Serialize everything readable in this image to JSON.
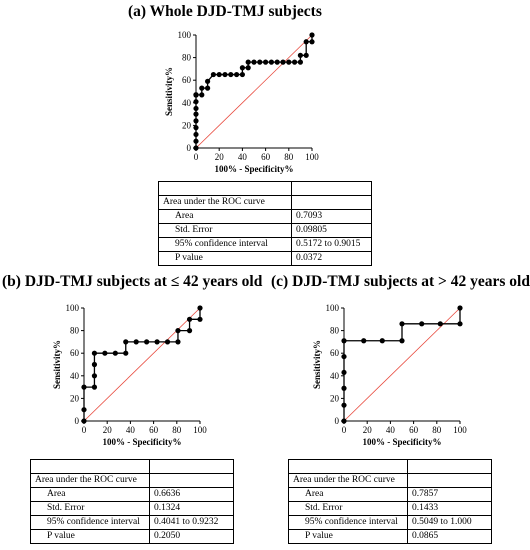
{
  "panels": [
    {
      "id": "a",
      "title": "(a) Whole DJD-TMJ subjects",
      "chart_data": {
        "type": "line",
        "title": "(a) Whole DJD-TMJ subjects",
        "xlabel": "100% - Specificity%",
        "ylabel": "Sensitivity%",
        "xlim": [
          0,
          100
        ],
        "ylim": [
          0,
          100
        ],
        "xticks": [
          0,
          20,
          40,
          60,
          80,
          100
        ],
        "yticks": [
          0,
          20,
          40,
          60,
          80,
          100
        ],
        "grid": false,
        "series": [
          {
            "x": [
              0,
              0,
              0,
              0,
              0,
              0,
              0,
              0,
              0,
              0,
              0,
              0,
              5,
              5,
              10,
              10,
              15,
              20,
              25,
              30,
              35,
              40,
              40,
              45,
              45,
              50,
              55,
              60,
              65,
              70,
              75,
              80,
              85,
              90,
              90,
              95,
              95,
              100,
              100
            ],
            "y": [
              0,
              6,
              12,
              18,
              24,
              30,
              35,
              41,
              47,
              47,
              47,
              47,
              47,
              53,
              53,
              59,
              65,
              65,
              65,
              65,
              65,
              65,
              71,
              71,
              76,
              76,
              76,
              76,
              76,
              76,
              76,
              76,
              76,
              76,
              82,
              82,
              94,
              94,
              100
            ]
          },
          {
            "x": [
              0,
              100
            ],
            "y": [
              0,
              100
            ]
          }
        ]
      },
      "table": {
        "header": [
          "",
          ""
        ],
        "section_label": "Area under the ROC curve",
        "rows": [
          {
            "label": "Area",
            "value": "0.7093"
          },
          {
            "label": "Std. Error",
            "value": "0.09805"
          },
          {
            "label": "95% confidence interval",
            "value": "0.5172 to 0.9015"
          },
          {
            "label": "P value",
            "value": "0.0372"
          }
        ]
      }
    },
    {
      "id": "b",
      "title": "(b) DJD-TMJ subjects at ≤ 42 years old",
      "chart_data": {
        "type": "line",
        "title": "(b) DJD-TMJ subjects at ≤ 42 years old",
        "xlabel": "100% - Specificity%",
        "ylabel": "Sensitivity%",
        "xlim": [
          0,
          100
        ],
        "ylim": [
          0,
          100
        ],
        "xticks": [
          0,
          20,
          40,
          60,
          80,
          100
        ],
        "yticks": [
          0,
          20,
          40,
          60,
          80,
          100
        ],
        "grid": false,
        "series": [
          {
            "x": [
              0,
              0,
              0,
              9,
              9,
              9,
              9,
              18,
              27,
              36,
              36,
              45,
              54,
              63,
              72,
              81,
              81,
              91,
              91,
              100,
              100
            ],
            "y": [
              0,
              10,
              30,
              30,
              40,
              50,
              60,
              60,
              60,
              60,
              70,
              70,
              70,
              70,
              70,
              70,
              80,
              80,
              90,
              90,
              100
            ]
          },
          {
            "x": [
              0,
              100
            ],
            "y": [
              0,
              100
            ]
          }
        ]
      },
      "table": {
        "header": [
          "",
          ""
        ],
        "section_label": "Area under the ROC curve",
        "rows": [
          {
            "label": "Area",
            "value": "0.6636"
          },
          {
            "label": "Std. Error",
            "value": "0.1324"
          },
          {
            "label": "95% confidence interval",
            "value": "0.4041 to 0.9232"
          },
          {
            "label": "P value",
            "value": "0.2050"
          }
        ]
      }
    },
    {
      "id": "c",
      "title": "(c) DJD-TMJ subjects at > 42 years old",
      "chart_data": {
        "type": "line",
        "title": "(c) DJD-TMJ subjects at > 42 years old",
        "xlabel": "100% - Specificity%",
        "ylabel": "Sensitivity%",
        "xlim": [
          0,
          100
        ],
        "ylim": [
          0,
          100
        ],
        "xticks": [
          0,
          20,
          40,
          60,
          80,
          100
        ],
        "yticks": [
          0,
          20,
          40,
          60,
          80,
          100
        ],
        "grid": false,
        "series": [
          {
            "x": [
              0,
              0,
              0,
              0,
              0,
              0,
              17,
              33,
              50,
              50,
              67,
              83,
              100,
              100
            ],
            "y": [
              0,
              14,
              29,
              43,
              57,
              71,
              71,
              71,
              71,
              86,
              86,
              86,
              86,
              100
            ]
          },
          {
            "x": [
              0,
              100
            ],
            "y": [
              0,
              100
            ]
          }
        ]
      },
      "table": {
        "header": [
          "",
          ""
        ],
        "section_label": "Area under the ROC curve",
        "rows": [
          {
            "label": "Area",
            "value": "0.7857"
          },
          {
            "label": "Std. Error",
            "value": "0.1433"
          },
          {
            "label": "95% confidence interval",
            "value": "0.5049 to 1.000"
          },
          {
            "label": "P value",
            "value": "0.0865"
          }
        ]
      }
    }
  ]
}
